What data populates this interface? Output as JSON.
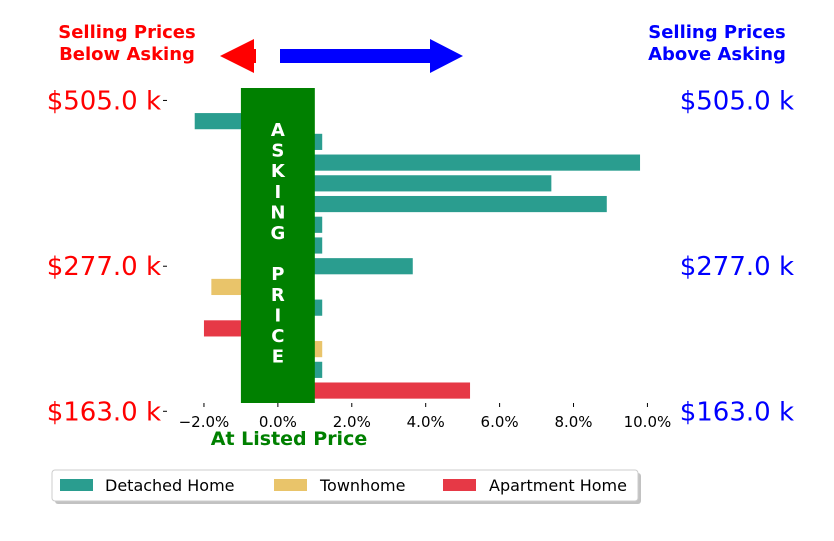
{
  "chart_data": {
    "type": "bar",
    "orientation": "horizontal",
    "xlabel": "At Listed Price",
    "xlim": [
      -3.0,
      10.8
    ],
    "x_ticks": [
      "−2.0%",
      "0.0%",
      "2.0%",
      "4.0%",
      "6.0%",
      "8.0%",
      "10.0%"
    ],
    "x_tick_values": [
      -2,
      0,
      2,
      4,
      6,
      8,
      10
    ],
    "y_ticks_left": [
      "$505.0 k",
      "$277.0 k",
      "$163.0 k"
    ],
    "y_ticks_right": [
      "$505.0 k",
      "$277.0 k",
      "$163.0 k"
    ],
    "ylim": [
      0.4,
      15.6
    ],
    "y_tick_positions": [
      15,
      7,
      0
    ],
    "left_header": [
      "Selling Prices",
      "Below Asking"
    ],
    "right_header": [
      "Selling Prices",
      "Above Asking"
    ],
    "band": {
      "label": [
        "A",
        "S",
        "K",
        "I",
        "N",
        "G",
        "",
        "P",
        "R",
        "I",
        "C",
        "E"
      ],
      "color": "#008000",
      "x_range": [
        -1.0,
        1.0
      ]
    },
    "legend_placement": "bottom-left",
    "series": [
      {
        "name": "Detached Home",
        "color": "#2a9d8f"
      },
      {
        "name": "Townhome",
        "color": "#e9c46a"
      },
      {
        "name": "Apartment Home",
        "color": "#e63946"
      }
    ],
    "bars": [
      {
        "y": 14,
        "value": -2.25,
        "series": 0
      },
      {
        "y": 13,
        "value": 1.2,
        "series": 0
      },
      {
        "y": 12,
        "value": 9.8,
        "series": 0
      },
      {
        "y": 11,
        "value": 7.4,
        "series": 0
      },
      {
        "y": 10,
        "value": 8.9,
        "series": 0
      },
      {
        "y": 9,
        "value": 1.2,
        "series": 0
      },
      {
        "y": 8,
        "value": 1.2,
        "series": 0
      },
      {
        "y": 7,
        "value": 3.65,
        "series": 0
      },
      {
        "y": 6,
        "value": -1.8,
        "series": 1
      },
      {
        "y": 5,
        "value": 1.2,
        "series": 0
      },
      {
        "y": 4,
        "value": -2.0,
        "series": 2
      },
      {
        "y": 3,
        "value": 1.2,
        "series": 1
      },
      {
        "y": 2,
        "value": 1.2,
        "series": 0
      },
      {
        "y": 1,
        "value": 5.2,
        "series": 2
      }
    ],
    "colors": {
      "left_axis": "#ff0000",
      "right_axis": "#0000ff",
      "band": "#008000"
    }
  }
}
